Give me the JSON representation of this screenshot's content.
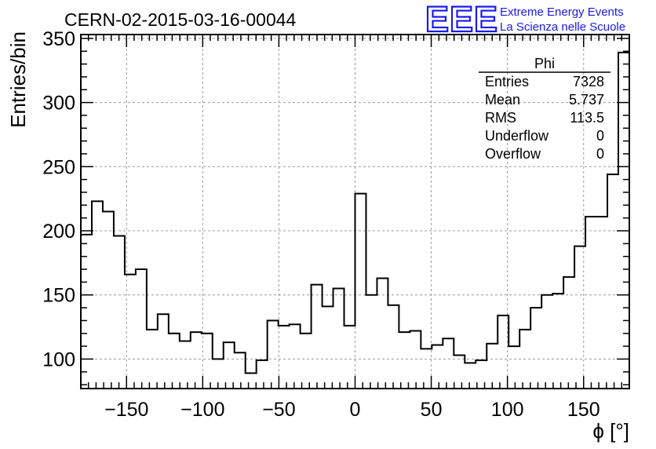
{
  "chart_data": {
    "type": "bar",
    "title": "CERN-02-2015-03-16-00044",
    "xlabel": "ϕ [°]",
    "ylabel": "Entries/bin",
    "xlim": [
      -180,
      180
    ],
    "ylim": [
      77,
      353
    ],
    "x_ticks": [
      -150,
      -100,
      -50,
      0,
      50,
      100,
      150
    ],
    "x_tick_labels": [
      "−150",
      "−100",
      "−50",
      "0",
      "50",
      "100",
      "150"
    ],
    "y_ticks": [
      100,
      150,
      200,
      250,
      300,
      350
    ],
    "y_tick_labels": [
      "100",
      "150",
      "200",
      "250",
      "300",
      "350"
    ],
    "grid": true,
    "bin_width": 7.2,
    "bin_low_edges": [
      -180,
      -172.8,
      -165.6,
      -158.4,
      -151.2,
      -144,
      -136.8,
      -129.6,
      -122.4,
      -115.2,
      -108,
      -100.8,
      -93.6,
      -86.4,
      -79.2,
      -72,
      -64.8,
      -57.6,
      -50.4,
      -43.2,
      -36,
      -28.8,
      -21.6,
      -14.4,
      -7.2,
      0,
      7.2,
      14.4,
      21.6,
      28.8,
      36,
      43.2,
      50.4,
      57.6,
      64.8,
      72,
      79.2,
      86.4,
      93.6,
      100.8,
      108,
      115.2,
      122.4,
      129.6,
      136.8,
      144,
      151.2,
      158.4,
      165.6,
      172.8
    ],
    "values": [
      197,
      223,
      215,
      196,
      166,
      170,
      123,
      135,
      120,
      114,
      121,
      120,
      100,
      113,
      105,
      89,
      99,
      130,
      126,
      127,
      120,
      158,
      141,
      155,
      126,
      229,
      150,
      163,
      142,
      121,
      122,
      108,
      111,
      116,
      103,
      97,
      99,
      112,
      134,
      110,
      123,
      140,
      150,
      151,
      164,
      188,
      211,
      211,
      244,
      339
    ]
  },
  "stats_box": {
    "title": "Phi",
    "rows": [
      {
        "label": "Entries",
        "value": "7328"
      },
      {
        "label": "Mean",
        "value": "5.737"
      },
      {
        "label": "RMS",
        "value": "113.5"
      },
      {
        "label": "Underflow",
        "value": "0"
      },
      {
        "label": "Overflow",
        "value": "0"
      }
    ]
  },
  "logo": {
    "text": "EEE",
    "line1": "Extreme Energy Events",
    "line2": "La Scienza nelle Scuole",
    "color": "#1a1aee"
  }
}
